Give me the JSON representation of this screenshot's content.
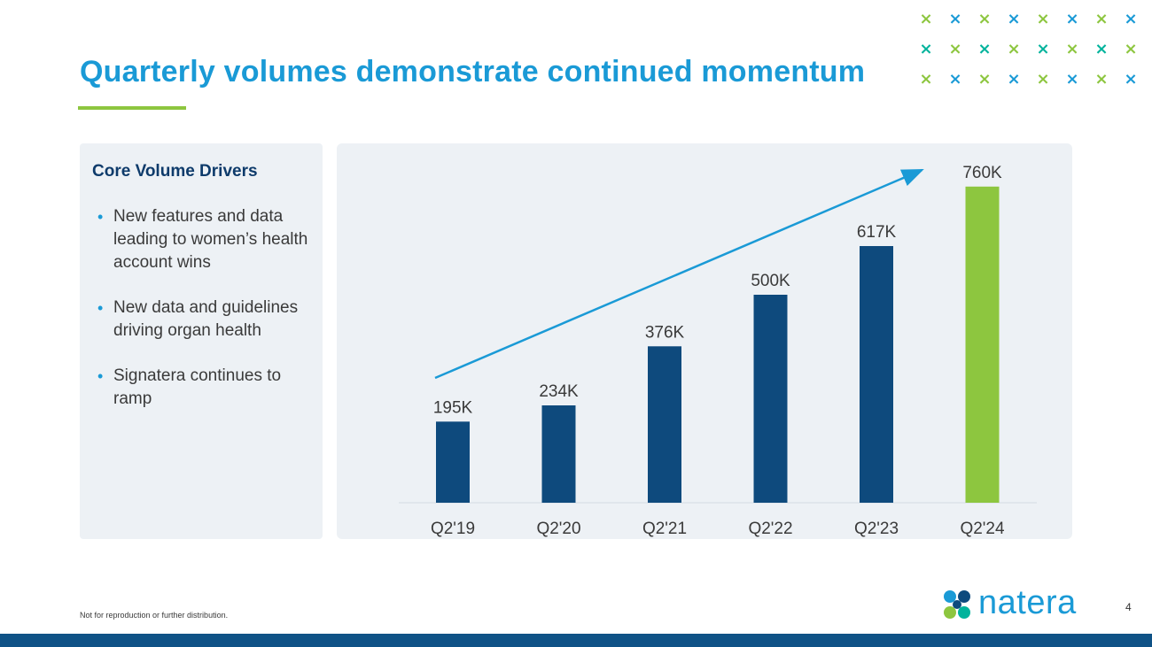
{
  "header": {
    "title": "Quarterly volumes demonstrate continued momentum"
  },
  "decoration": {
    "x_glyph": "×",
    "colors": [
      "#8dc63f",
      "#1a9ad6",
      "#00b39c"
    ]
  },
  "drivers": {
    "heading": "Core Volume Drivers",
    "items": [
      "New features and data leading to women’s health account wins",
      "New data and guidelines driving organ health",
      "Signatera continues to ramp"
    ]
  },
  "chart_data": {
    "type": "bar",
    "title": "",
    "xlabel": "",
    "ylabel": "",
    "ylim": [
      0,
      800000
    ],
    "grid": false,
    "categories": [
      "Q2'19",
      "Q2'20",
      "Q2'21",
      "Q2'22",
      "Q2'23",
      "Q2'24"
    ],
    "values": [
      195000,
      234000,
      376000,
      500000,
      617000,
      760000
    ],
    "data_labels": [
      "195K",
      "234K",
      "376K",
      "500K",
      "617K",
      "760K"
    ],
    "bar_colors": [
      "#0e4a7d",
      "#0e4a7d",
      "#0e4a7d",
      "#0e4a7d",
      "#0e4a7d",
      "#8dc63f"
    ],
    "annotations": [
      {
        "type": "trend-arrow",
        "from_category": "Q2'19",
        "to_category": "Q2'24",
        "color": "#1a9ad6"
      }
    ]
  },
  "footer": {
    "note": "Not for reproduction  or further  distribution.",
    "logo_text": "natera",
    "page_number": "4"
  }
}
